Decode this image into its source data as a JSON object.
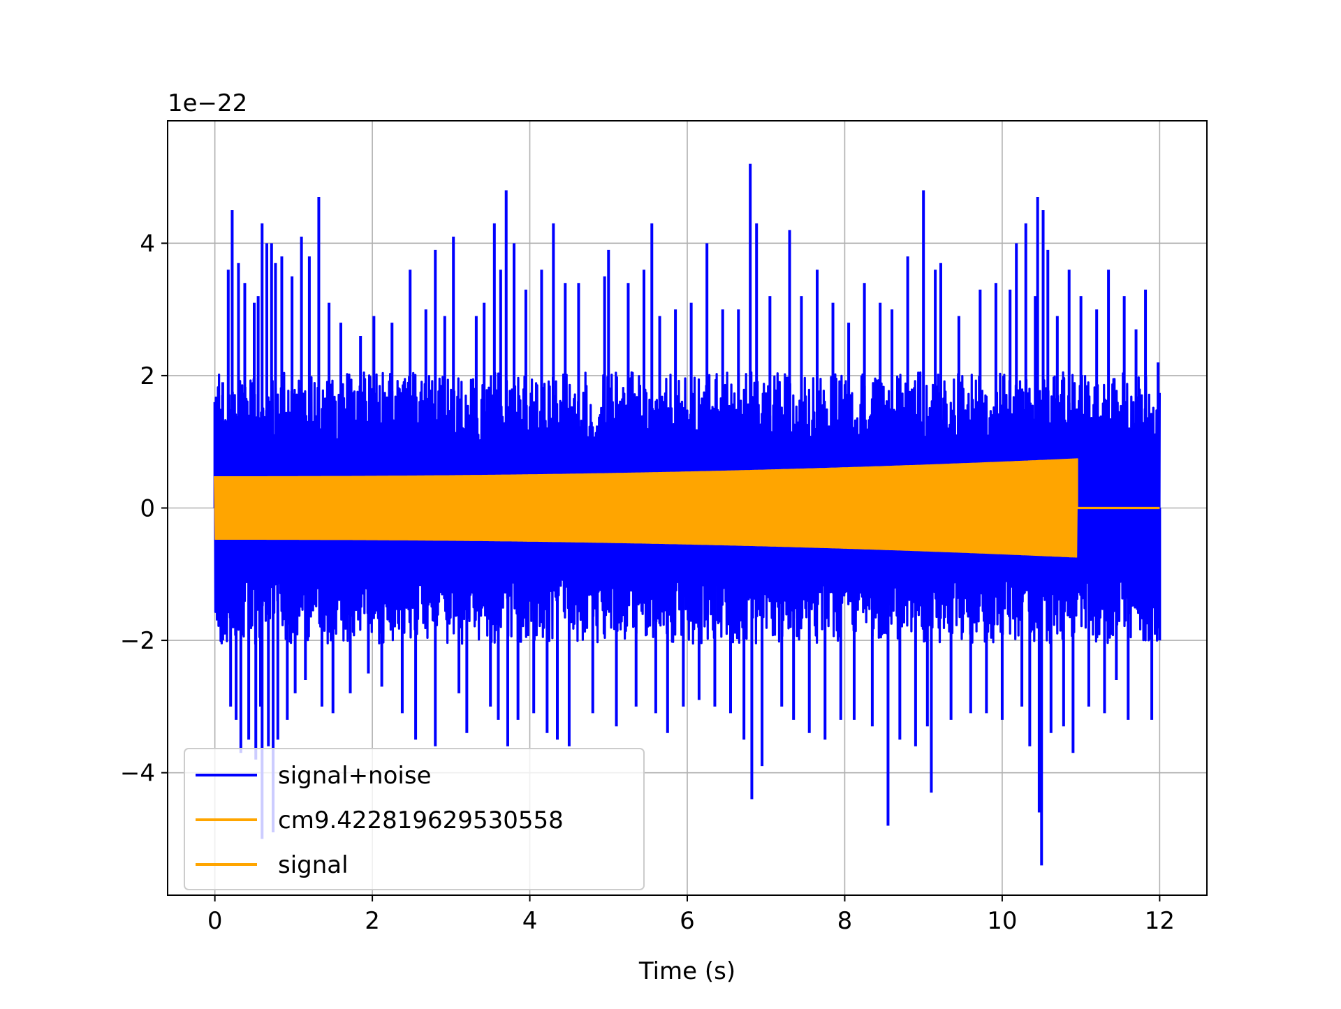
{
  "chart_data": {
    "type": "line",
    "title": "",
    "xlabel": "Time (s)",
    "ylabel": "",
    "y_offset_label": "1e−22",
    "y_scale_exponent": -22,
    "xlim": [
      -0.6,
      12.6
    ],
    "ylim": [
      -5.85,
      5.85
    ],
    "x_ticks": [
      0,
      2,
      4,
      6,
      8,
      10,
      12
    ],
    "x_tick_labels": [
      "0",
      "2",
      "4",
      "6",
      "8",
      "10",
      "12"
    ],
    "y_ticks": [
      -4,
      -2,
      0,
      2,
      4
    ],
    "y_tick_labels": [
      "−4",
      "−2",
      "0",
      "2",
      "4"
    ],
    "grid": true,
    "legend_position": "lower-left",
    "series": [
      {
        "name": "signal+noise",
        "color": "#0000ff",
        "x_range": [
          0,
          12
        ],
        "typical_envelope": [
          -2.0,
          2.0
        ],
        "spikes": [
          {
            "x": 0.0,
            "y": 1.6
          },
          {
            "x": 0.03,
            "y": -1.7
          },
          {
            "x": 0.1,
            "y": 1.9
          },
          {
            "x": 0.1,
            "y": -2.0
          },
          {
            "x": 0.17,
            "y": 3.6
          },
          {
            "x": 0.2,
            "y": -3.0
          },
          {
            "x": 0.22,
            "y": 4.5
          },
          {
            "x": 0.27,
            "y": -3.2
          },
          {
            "x": 0.3,
            "y": 3.7
          },
          {
            "x": 0.33,
            "y": -3.7
          },
          {
            "x": 0.38,
            "y": 3.4
          },
          {
            "x": 0.43,
            "y": -3.5
          },
          {
            "x": 0.5,
            "y": 3.1
          },
          {
            "x": 0.52,
            "y": -3.8
          },
          {
            "x": 0.55,
            "y": 3.2
          },
          {
            "x": 0.58,
            "y": -3.0
          },
          {
            "x": 0.6,
            "y": 4.3
          },
          {
            "x": 0.6,
            "y": -5.0
          },
          {
            "x": 0.66,
            "y": 4.0
          },
          {
            "x": 0.68,
            "y": -3.6
          },
          {
            "x": 0.72,
            "y": 4.0
          },
          {
            "x": 0.74,
            "y": -4.9
          },
          {
            "x": 0.77,
            "y": 3.7
          },
          {
            "x": 0.8,
            "y": -3.5
          },
          {
            "x": 0.85,
            "y": 3.8
          },
          {
            "x": 0.92,
            "y": -3.2
          },
          {
            "x": 0.98,
            "y": 3.5
          },
          {
            "x": 1.02,
            "y": -2.8
          },
          {
            "x": 1.1,
            "y": 4.1
          },
          {
            "x": 1.15,
            "y": -2.6
          },
          {
            "x": 1.2,
            "y": 3.8
          },
          {
            "x": 1.32,
            "y": 4.7
          },
          {
            "x": 1.36,
            "y": -3.0
          },
          {
            "x": 1.45,
            "y": 3.1
          },
          {
            "x": 1.5,
            "y": -3.1
          },
          {
            "x": 1.6,
            "y": 2.8
          },
          {
            "x": 1.72,
            "y": -2.8
          },
          {
            "x": 1.85,
            "y": 2.6
          },
          {
            "x": 1.95,
            "y": -2.5
          },
          {
            "x": 2.02,
            "y": 2.9
          },
          {
            "x": 2.12,
            "y": -2.7
          },
          {
            "x": 2.25,
            "y": 2.8
          },
          {
            "x": 2.38,
            "y": -3.1
          },
          {
            "x": 2.48,
            "y": 3.6
          },
          {
            "x": 2.55,
            "y": -3.5
          },
          {
            "x": 2.68,
            "y": 3.0
          },
          {
            "x": 2.8,
            "y": 3.9
          },
          {
            "x": 2.8,
            "y": -3.6
          },
          {
            "x": 2.92,
            "y": 2.9
          },
          {
            "x": 3.03,
            "y": 4.1
          },
          {
            "x": 3.1,
            "y": -2.8
          },
          {
            "x": 3.2,
            "y": -3.4
          },
          {
            "x": 3.32,
            "y": 2.9
          },
          {
            "x": 3.42,
            "y": 3.1
          },
          {
            "x": 3.5,
            "y": -3.0
          },
          {
            "x": 3.55,
            "y": 4.3
          },
          {
            "x": 3.6,
            "y": -3.2
          },
          {
            "x": 3.63,
            "y": 3.6
          },
          {
            "x": 3.7,
            "y": 4.8
          },
          {
            "x": 3.72,
            "y": -3.6
          },
          {
            "x": 3.8,
            "y": 4.0
          },
          {
            "x": 3.85,
            "y": -3.2
          },
          {
            "x": 3.95,
            "y": 3.3
          },
          {
            "x": 4.05,
            "y": -3.1
          },
          {
            "x": 4.15,
            "y": 3.6
          },
          {
            "x": 4.22,
            "y": -3.4
          },
          {
            "x": 4.3,
            "y": 4.3
          },
          {
            "x": 4.35,
            "y": -3.5
          },
          {
            "x": 4.45,
            "y": 3.4
          },
          {
            "x": 4.5,
            "y": -3.6
          },
          {
            "x": 4.62,
            "y": 3.4
          },
          {
            "x": 4.8,
            "y": -3.1
          },
          {
            "x": 4.95,
            "y": 3.5
          },
          {
            "x": 5.0,
            "y": 3.9
          },
          {
            "x": 5.1,
            "y": -3.3
          },
          {
            "x": 5.25,
            "y": 3.4
          },
          {
            "x": 5.35,
            "y": -3.0
          },
          {
            "x": 5.45,
            "y": 3.6
          },
          {
            "x": 5.55,
            "y": 4.3
          },
          {
            "x": 5.6,
            "y": -3.1
          },
          {
            "x": 5.65,
            "y": 2.9
          },
          {
            "x": 5.75,
            "y": -3.4
          },
          {
            "x": 5.85,
            "y": 3.0
          },
          {
            "x": 5.95,
            "y": -3.0
          },
          {
            "x": 6.05,
            "y": 3.1
          },
          {
            "x": 6.15,
            "y": -2.9
          },
          {
            "x": 6.25,
            "y": 4.0
          },
          {
            "x": 6.35,
            "y": -3.0
          },
          {
            "x": 6.45,
            "y": 3.0
          },
          {
            "x": 6.55,
            "y": -3.1
          },
          {
            "x": 6.65,
            "y": 3.0
          },
          {
            "x": 6.72,
            "y": -3.5
          },
          {
            "x": 6.8,
            "y": 5.2
          },
          {
            "x": 6.82,
            "y": -4.4
          },
          {
            "x": 6.88,
            "y": 4.3
          },
          {
            "x": 6.95,
            "y": -3.9
          },
          {
            "x": 7.05,
            "y": 3.2
          },
          {
            "x": 7.2,
            "y": -3.0
          },
          {
            "x": 7.3,
            "y": 4.2
          },
          {
            "x": 7.35,
            "y": -3.2
          },
          {
            "x": 7.45,
            "y": 3.2
          },
          {
            "x": 7.55,
            "y": -3.4
          },
          {
            "x": 7.65,
            "y": 3.6
          },
          {
            "x": 7.75,
            "y": -3.5
          },
          {
            "x": 7.85,
            "y": 3.1
          },
          {
            "x": 7.95,
            "y": -3.2
          },
          {
            "x": 8.05,
            "y": 2.8
          },
          {
            "x": 8.12,
            "y": -3.2
          },
          {
            "x": 8.25,
            "y": 3.4
          },
          {
            "x": 8.35,
            "y": -3.3
          },
          {
            "x": 8.45,
            "y": 3.1
          },
          {
            "x": 8.55,
            "y": -4.8
          },
          {
            "x": 8.6,
            "y": 3.0
          },
          {
            "x": 8.7,
            "y": -3.5
          },
          {
            "x": 8.8,
            "y": 3.8
          },
          {
            "x": 8.9,
            "y": -3.6
          },
          {
            "x": 9.0,
            "y": 4.8
          },
          {
            "x": 9.05,
            "y": -3.3
          },
          {
            "x": 9.1,
            "y": -4.3
          },
          {
            "x": 9.15,
            "y": 3.6
          },
          {
            "x": 9.22,
            "y": 3.7
          },
          {
            "x": 9.35,
            "y": -3.2
          },
          {
            "x": 9.45,
            "y": 2.9
          },
          {
            "x": 9.6,
            "y": -3.1
          },
          {
            "x": 9.72,
            "y": 3.3
          },
          {
            "x": 9.8,
            "y": -3.1
          },
          {
            "x": 9.92,
            "y": 3.4
          },
          {
            "x": 10.0,
            "y": -3.2
          },
          {
            "x": 10.1,
            "y": 3.3
          },
          {
            "x": 10.18,
            "y": 4.0
          },
          {
            "x": 10.25,
            "y": -3.0
          },
          {
            "x": 10.3,
            "y": 4.3
          },
          {
            "x": 10.35,
            "y": -3.6
          },
          {
            "x": 10.42,
            "y": 3.2
          },
          {
            "x": 10.45,
            "y": 4.7
          },
          {
            "x": 10.47,
            "y": -4.6
          },
          {
            "x": 10.5,
            "y": -5.4
          },
          {
            "x": 10.52,
            "y": 4.5
          },
          {
            "x": 10.58,
            "y": 3.9
          },
          {
            "x": 10.62,
            "y": -3.4
          },
          {
            "x": 10.7,
            "y": 2.9
          },
          {
            "x": 10.78,
            "y": -3.3
          },
          {
            "x": 10.85,
            "y": 3.6
          },
          {
            "x": 10.9,
            "y": -3.7
          },
          {
            "x": 11.0,
            "y": 3.2
          },
          {
            "x": 11.1,
            "y": -3.0
          },
          {
            "x": 11.2,
            "y": 3.0
          },
          {
            "x": 11.3,
            "y": -3.1
          },
          {
            "x": 11.35,
            "y": 3.6
          },
          {
            "x": 11.45,
            "y": -2.6
          },
          {
            "x": 11.55,
            "y": 3.2
          },
          {
            "x": 11.6,
            "y": -3.2
          },
          {
            "x": 11.7,
            "y": 2.7
          },
          {
            "x": 11.82,
            "y": 3.3
          },
          {
            "x": 11.9,
            "y": -3.2
          },
          {
            "x": 11.98,
            "y": 2.2
          },
          {
            "x": 12.0,
            "y": -2.0
          }
        ]
      },
      {
        "name": "cm9.422819629530558",
        "color": "#ffa500",
        "x_range": [
          0,
          10.95
        ],
        "amplitude_start": 0.48,
        "amplitude_end": 0.75
      },
      {
        "name": "signal",
        "color": "#ffa500",
        "x_range": [
          0,
          12
        ],
        "amplitude_start": 0.48,
        "amplitude_end": 0.75,
        "ends_at": 10.95
      }
    ]
  }
}
